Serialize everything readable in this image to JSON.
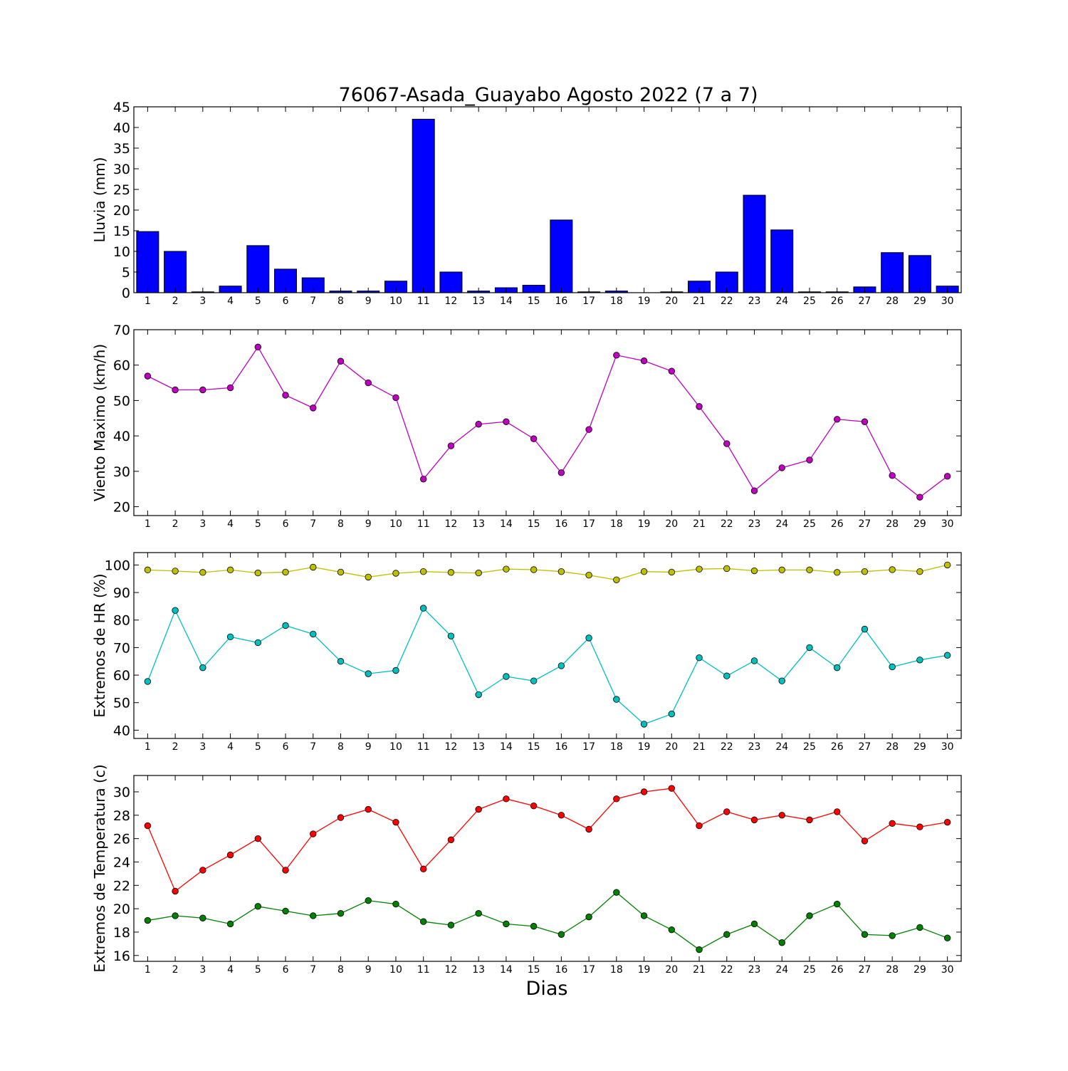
{
  "figure": {
    "title": "76067-Asada_Guayabo Agosto 2022  (7 a 7)",
    "xlabel": "Dias"
  },
  "chart_data": [
    {
      "type": "bar",
      "ylabel": "Lluvia (mm)",
      "ylim": [
        0,
        45
      ],
      "yticks": [
        0,
        5,
        10,
        15,
        20,
        25,
        30,
        35,
        40,
        45
      ],
      "categories": [
        "1",
        "2",
        "3",
        "4",
        "5",
        "6",
        "7",
        "8",
        "9",
        "10",
        "11",
        "12",
        "13",
        "14",
        "15",
        "16",
        "17",
        "18",
        "19",
        "20",
        "21",
        "22",
        "23",
        "24",
        "25",
        "26",
        "27",
        "28",
        "29",
        "30"
      ],
      "series": [
        {
          "color": "#0000ff",
          "values": [
            14.8,
            10.0,
            0.2,
            1.6,
            11.4,
            5.7,
            3.6,
            0.4,
            0.4,
            2.8,
            42.0,
            5.0,
            0.4,
            1.2,
            1.8,
            17.6,
            0.2,
            0.4,
            0.0,
            0.2,
            2.8,
            5.0,
            23.6,
            15.2,
            0.2,
            0.2,
            1.4,
            9.7,
            9.0,
            1.6
          ]
        }
      ]
    },
    {
      "type": "line",
      "ylabel": "Viento Maximo (km/h)",
      "ylim": [
        17.5,
        70
      ],
      "yticks": [
        20,
        30,
        40,
        50,
        60,
        70
      ],
      "categories": [
        "1",
        "2",
        "3",
        "4",
        "5",
        "6",
        "7",
        "8",
        "9",
        "10",
        "11",
        "12",
        "13",
        "14",
        "15",
        "16",
        "17",
        "18",
        "19",
        "20",
        "21",
        "22",
        "23",
        "24",
        "25",
        "26",
        "27",
        "28",
        "29",
        "30"
      ],
      "series": [
        {
          "color": "#bf00bf",
          "values": [
            56.9,
            53.0,
            53.0,
            53.6,
            65.1,
            51.5,
            47.9,
            61.1,
            55.0,
            50.8,
            27.8,
            37.2,
            43.3,
            44.0,
            39.2,
            29.6,
            41.8,
            62.8,
            61.2,
            58.3,
            48.3,
            37.8,
            24.5,
            31.0,
            33.2,
            44.7,
            44.0,
            28.8,
            22.7,
            28.6
          ]
        }
      ]
    },
    {
      "type": "line",
      "ylabel": "Extremos de HR (%)",
      "ylim": [
        37,
        104.5
      ],
      "yticks": [
        40,
        50,
        60,
        70,
        80,
        90,
        100
      ],
      "categories": [
        "1",
        "2",
        "3",
        "4",
        "5",
        "6",
        "7",
        "8",
        "9",
        "10",
        "11",
        "12",
        "13",
        "14",
        "15",
        "16",
        "17",
        "18",
        "19",
        "20",
        "21",
        "22",
        "23",
        "24",
        "25",
        "26",
        "27",
        "28",
        "29",
        "30"
      ],
      "series": [
        {
          "color": "#bfbf00",
          "values": [
            98.2,
            97.8,
            97.3,
            98.2,
            97.1,
            97.4,
            99.2,
            97.4,
            95.6,
            97.0,
            97.6,
            97.3,
            97.1,
            98.5,
            98.3,
            97.6,
            96.3,
            94.6,
            97.6,
            97.4,
            98.5,
            98.7,
            97.9,
            98.2,
            98.2,
            97.3,
            97.6,
            98.3,
            97.6,
            100.0
          ]
        },
        {
          "color": "#00bfbf",
          "values": [
            57.7,
            83.5,
            62.7,
            73.9,
            71.8,
            78.0,
            74.9,
            65.0,
            60.5,
            61.7,
            84.3,
            74.2,
            52.9,
            59.5,
            57.9,
            63.4,
            73.5,
            51.2,
            42.2,
            45.9,
            66.3,
            59.7,
            65.2,
            57.9,
            70.0,
            62.7,
            76.7,
            63.0,
            65.5,
            67.2
          ]
        }
      ]
    },
    {
      "type": "line",
      "ylabel": "Extremos de Temperatura (c)",
      "ylim": [
        15.5,
        31.4
      ],
      "yticks": [
        16,
        18,
        20,
        22,
        24,
        26,
        28,
        30
      ],
      "categories": [
        "1",
        "2",
        "3",
        "4",
        "5",
        "6",
        "7",
        "8",
        "9",
        "10",
        "11",
        "12",
        "13",
        "14",
        "15",
        "16",
        "17",
        "18",
        "19",
        "20",
        "21",
        "22",
        "23",
        "24",
        "25",
        "26",
        "27",
        "28",
        "29",
        "30"
      ],
      "series": [
        {
          "color": "#ff0000",
          "values": [
            27.1,
            21.5,
            23.3,
            24.6,
            26.0,
            23.3,
            26.4,
            27.8,
            28.5,
            27.4,
            23.4,
            25.9,
            28.5,
            29.4,
            28.8,
            28.0,
            26.8,
            29.4,
            30.0,
            30.3,
            27.1,
            28.3,
            27.6,
            28.0,
            27.6,
            28.3,
            25.8,
            27.3,
            27.0,
            27.4
          ]
        },
        {
          "color": "#008000",
          "values": [
            19.0,
            19.4,
            19.2,
            18.7,
            20.2,
            19.8,
            19.4,
            19.6,
            20.7,
            20.4,
            18.9,
            18.6,
            19.6,
            18.7,
            18.5,
            17.8,
            19.3,
            21.4,
            19.4,
            18.2,
            16.5,
            17.8,
            18.7,
            17.1,
            19.4,
            20.4,
            17.8,
            17.7,
            18.4,
            17.5
          ]
        }
      ]
    }
  ]
}
